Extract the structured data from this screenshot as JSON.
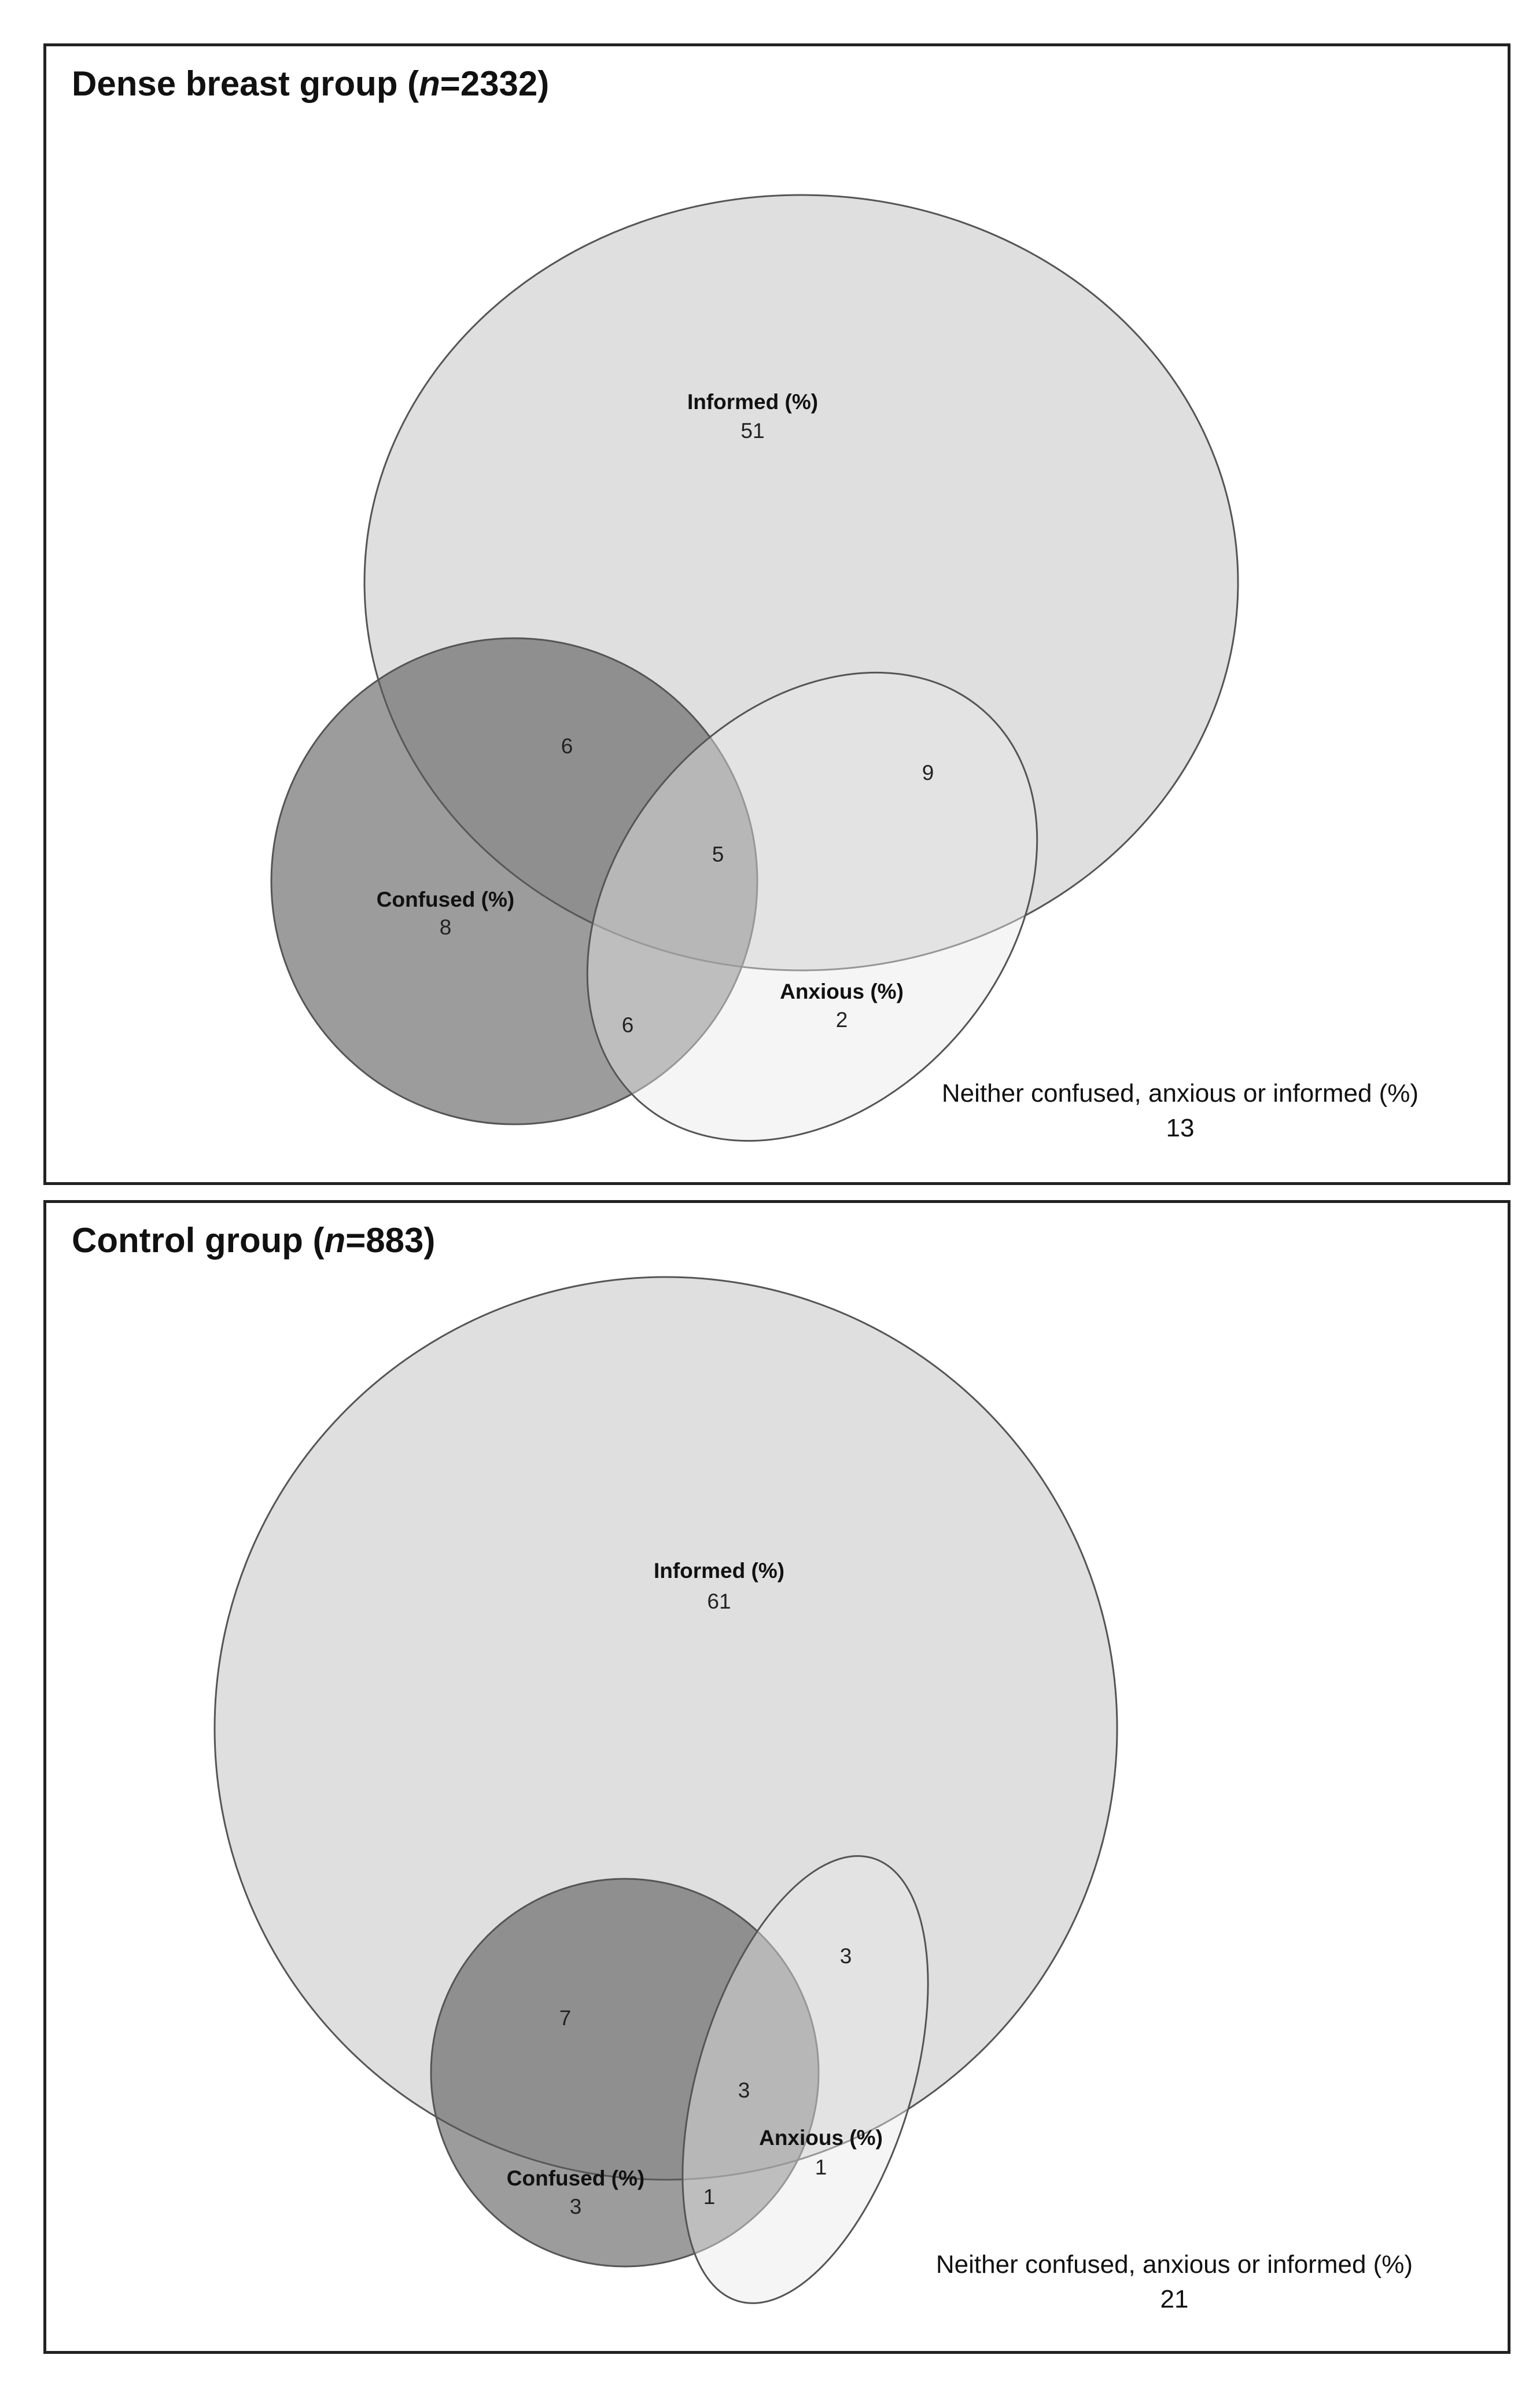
{
  "panels": [
    {
      "title_prefix": "Dense breast group (",
      "title_n": "n",
      "title_suffix": "=2332)",
      "informed": {
        "label": "Informed (%)",
        "value": "51"
      },
      "confused": {
        "label": "Confused (%)",
        "value": "8"
      },
      "anxious": {
        "label": "Anxious (%)",
        "value": "2"
      },
      "informed_confused": "6",
      "informed_anxious": "9",
      "all_three": "5",
      "confused_anxious": "6",
      "neither": {
        "label": "Neither confused, anxious or informed (%)",
        "value": "13"
      }
    },
    {
      "title_prefix": "Control group (",
      "title_n": "n",
      "title_suffix": "=883)",
      "informed": {
        "label": "Informed (%)",
        "value": "61"
      },
      "confused": {
        "label": "Confused (%)",
        "value": "3"
      },
      "anxious": {
        "label": "Anxious (%)",
        "value": "1"
      },
      "informed_confused": "7",
      "informed_anxious": "3",
      "all_three": "3",
      "confused_anxious": "1",
      "neither": {
        "label": "Neither confused, anxious or informed (%)",
        "value": "21"
      }
    }
  ],
  "colors": {
    "informed_fill": "#c4c4c4",
    "confused_fill": "#5a5a5a",
    "anxious_fill": "#e8e8e8",
    "outline": "#555555"
  }
}
